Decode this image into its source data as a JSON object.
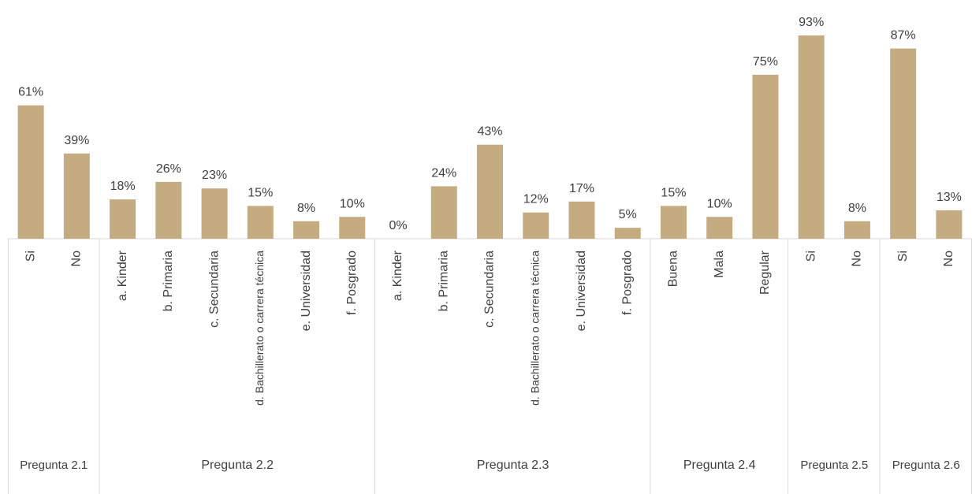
{
  "chart_data": {
    "type": "bar",
    "color": "#c4ac80",
    "groups": [
      {
        "label": "Pregunta 2.1",
        "categories": [
          "Si",
          "No"
        ],
        "values": [
          61,
          39
        ],
        "value_labels": [
          "61%",
          "39%"
        ]
      },
      {
        "label": "Pregunta 2.2",
        "categories": [
          "a. Kinder",
          "b. Primaria",
          "c. Secundaria",
          "d. Bachillerato o carrera técnica",
          "e. Universidad",
          "f. Posgrado"
        ],
        "values": [
          18,
          26,
          23,
          15,
          8,
          10
        ],
        "value_labels": [
          "18%",
          "26%",
          "23%",
          "15%",
          "8%",
          "10%"
        ]
      },
      {
        "label": "Pregunta 2.3",
        "categories": [
          "a. Kinder",
          "b. Primaria",
          "c. Secundaria",
          "d. Bachillerato o carrera técnica",
          "e. Universidad",
          "f. Posgrado"
        ],
        "values": [
          0,
          24,
          43,
          12,
          17,
          5
        ],
        "value_labels": [
          "0%",
          "24%",
          "43%",
          "12%",
          "17%",
          "5%"
        ]
      },
      {
        "label": "Pregunta 2.4",
        "categories": [
          "Buena",
          "Mala",
          "Regular"
        ],
        "values": [
          15,
          10,
          75
        ],
        "value_labels": [
          "15%",
          "10%",
          "75%"
        ]
      },
      {
        "label": "Pregunta 2.5",
        "categories": [
          "Si",
          "No"
        ],
        "values": [
          93,
          8
        ],
        "value_labels": [
          "93%",
          "8%"
        ]
      },
      {
        "label": "Pregunta 2.6",
        "categories": [
          "Si",
          "No"
        ],
        "values": [
          87,
          13
        ],
        "value_labels": [
          "87%",
          "13%"
        ]
      }
    ]
  }
}
